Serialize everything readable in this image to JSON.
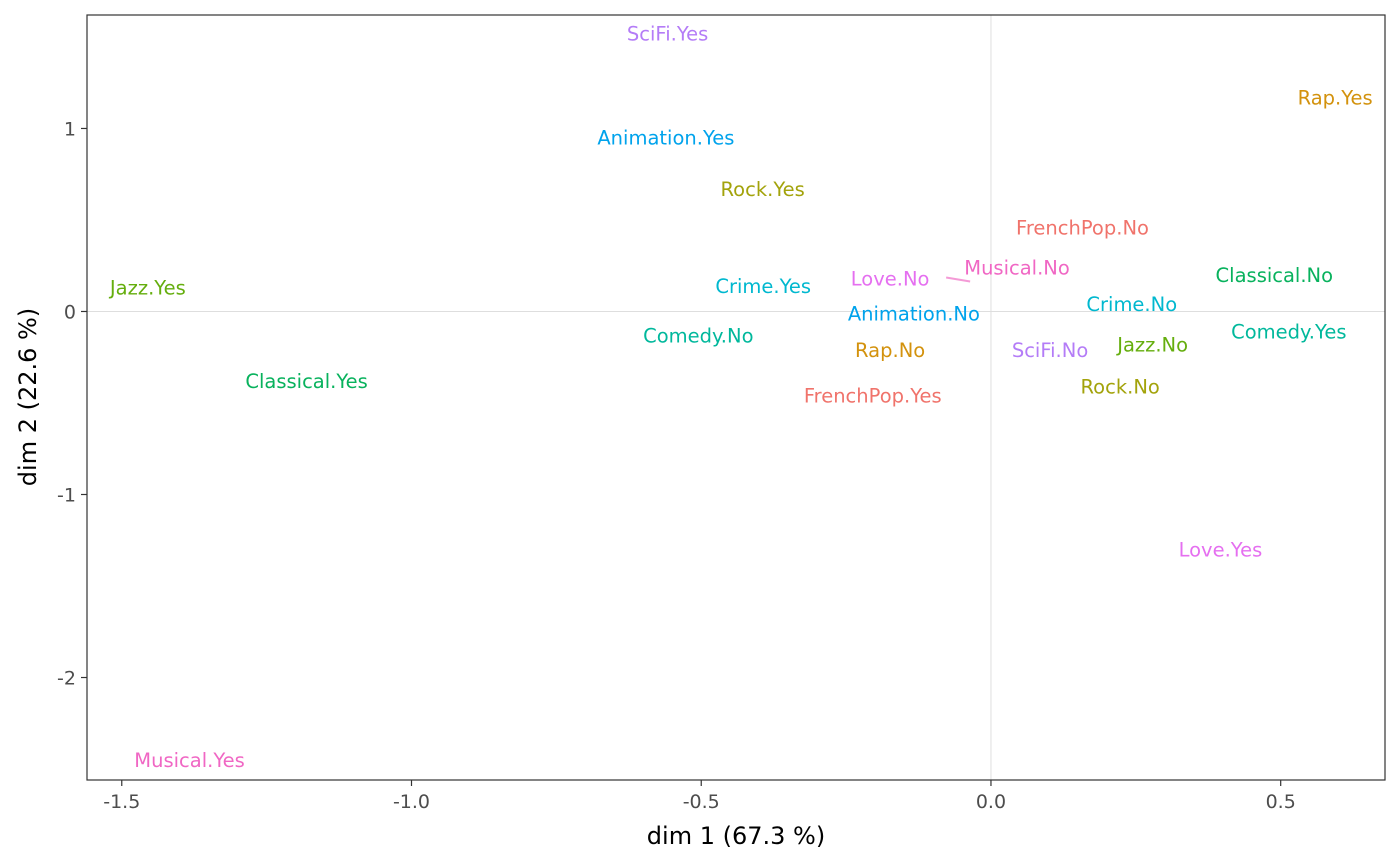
{
  "chart_data": {
    "type": "scatter",
    "xlabel": "dim 1 (67.3 %)",
    "ylabel": "dim 2 (22.6 %)",
    "xlim": [
      -1.56,
      0.68
    ],
    "ylim": [
      -2.56,
      1.62
    ],
    "xticks": [
      -1.5,
      -1.0,
      -0.5,
      0.0,
      0.5
    ],
    "xtick_labels": [
      "-1.5",
      "-1.0",
      "-0.5",
      "0.0",
      "0.5"
    ],
    "yticks": [
      -2,
      -1,
      0,
      1
    ],
    "ytick_labels": [
      "-2",
      "-1",
      "0",
      "1"
    ],
    "grid": false,
    "reference_lines": {
      "x": 0,
      "y": 0,
      "color": "#dedede"
    },
    "points": [
      {
        "label": "SciFi.Yes",
        "x": -0.558,
        "y": 1.52,
        "color": "#b47cf7"
      },
      {
        "label": "Rap.Yes",
        "x": 0.594,
        "y": 1.17,
        "color": "#d3920d"
      },
      {
        "label": "Animation.Yes",
        "x": -0.561,
        "y": 0.95,
        "color": "#00a3ec"
      },
      {
        "label": "Rock.Yes",
        "x": -0.394,
        "y": 0.67,
        "color": "#a3a30b"
      },
      {
        "label": "FrenchPop.No",
        "x": 0.158,
        "y": 0.46,
        "color": "#f0736b"
      },
      {
        "label": "Musical.No",
        "x": 0.045,
        "y": 0.24,
        "color": "#f067c4"
      },
      {
        "label": "Love.No",
        "x": -0.174,
        "y": 0.18,
        "color": "#e56ff0"
      },
      {
        "label": "Classical.No",
        "x": 0.489,
        "y": 0.2,
        "color": "#08b25d"
      },
      {
        "label": "Jazz.Yes",
        "x": -1.455,
        "y": 0.13,
        "color": "#65ae0e"
      },
      {
        "label": "Crime.Yes",
        "x": -0.393,
        "y": 0.14,
        "color": "#00b8cf"
      },
      {
        "label": "Crime.No",
        "x": 0.243,
        "y": 0.04,
        "color": "#00b8cf"
      },
      {
        "label": "Animation.No",
        "x": -0.133,
        "y": -0.01,
        "color": "#00a3ec"
      },
      {
        "label": "Comedy.No",
        "x": -0.505,
        "y": -0.13,
        "color": "#00b89c"
      },
      {
        "label": "Comedy.Yes",
        "x": 0.514,
        "y": -0.11,
        "color": "#00b89c"
      },
      {
        "label": "Jazz.No",
        "x": 0.279,
        "y": -0.18,
        "color": "#65ae0e"
      },
      {
        "label": "Rap.No",
        "x": -0.174,
        "y": -0.21,
        "color": "#d3920d"
      },
      {
        "label": "SciFi.No",
        "x": 0.102,
        "y": -0.21,
        "color": "#b47cf7"
      },
      {
        "label": "Classical.Yes",
        "x": -1.181,
        "y": -0.38,
        "color": "#08b25d"
      },
      {
        "label": "Rock.No",
        "x": 0.223,
        "y": -0.41,
        "color": "#a3a30b"
      },
      {
        "label": "FrenchPop.Yes",
        "x": -0.204,
        "y": -0.46,
        "color": "#f0736b"
      },
      {
        "label": "Love.Yes",
        "x": 0.396,
        "y": -1.3,
        "color": "#e56ff0"
      },
      {
        "label": "Musical.Yes",
        "x": -1.383,
        "y": -2.45,
        "color": "#f067c4"
      }
    ]
  }
}
